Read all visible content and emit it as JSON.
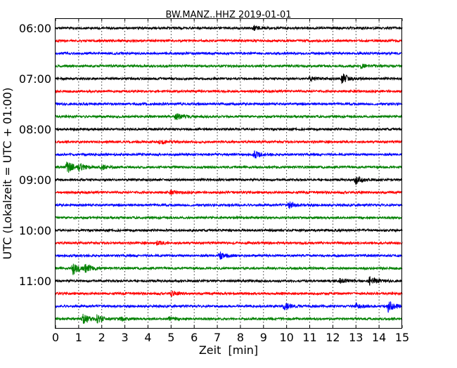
{
  "chart_data": {
    "type": "line",
    "title": "BW.MANZ..HHZ 2019-01-01",
    "xlabel": "Zeit  [min]",
    "ylabel": "UTC (Lokalzeit = UTC + 01:00)",
    "xlim": [
      0,
      15
    ],
    "x_ticks": [
      "0",
      "1",
      "2",
      "3",
      "4",
      "5",
      "6",
      "7",
      "8",
      "9",
      "10",
      "11",
      "12",
      "13",
      "14",
      "15"
    ],
    "y_ticks": [
      {
        "trace": 0,
        "label": "06:00"
      },
      {
        "trace": 4,
        "label": "07:00"
      },
      {
        "trace": 8,
        "label": "08:00"
      },
      {
        "trace": 12,
        "label": "09:00"
      },
      {
        "trace": 16,
        "label": "10:00"
      },
      {
        "trace": 20,
        "label": "11:00"
      }
    ],
    "grid": "vertical dotted",
    "colors": [
      "#000000",
      "#ff0000",
      "#0000ff",
      "#008000"
    ],
    "trace_minutes": 15,
    "traces": [
      {
        "start": "06:00",
        "events": [
          [
            8.6,
            0.4
          ]
        ]
      },
      {
        "start": "06:15",
        "events": []
      },
      {
        "start": "06:30",
        "events": []
      },
      {
        "start": "06:45",
        "events": [
          [
            13.2,
            0.3
          ]
        ]
      },
      {
        "start": "07:00",
        "events": [
          [
            11.0,
            0.35
          ],
          [
            12.4,
            1.0
          ]
        ]
      },
      {
        "start": "07:15",
        "events": []
      },
      {
        "start": "07:30",
        "events": []
      },
      {
        "start": "07:45",
        "events": [
          [
            5.2,
            0.6
          ]
        ]
      },
      {
        "start": "08:00",
        "events": []
      },
      {
        "start": "08:15",
        "events": [
          [
            4.5,
            0.3
          ]
        ]
      },
      {
        "start": "08:30",
        "events": [
          [
            8.6,
            0.6
          ]
        ]
      },
      {
        "start": "08:45",
        "events": [
          [
            0.5,
            1.1
          ],
          [
            1.0,
            0.6
          ],
          [
            2.0,
            0.4
          ]
        ]
      },
      {
        "start": "09:00",
        "events": [
          [
            13.0,
            0.8
          ]
        ]
      },
      {
        "start": "09:15",
        "events": [
          [
            5.0,
            0.3
          ]
        ]
      },
      {
        "start": "09:30",
        "events": [
          [
            10.1,
            0.6
          ]
        ]
      },
      {
        "start": "09:45",
        "events": []
      },
      {
        "start": "10:00",
        "events": []
      },
      {
        "start": "10:15",
        "events": [
          [
            4.4,
            0.3
          ]
        ]
      },
      {
        "start": "10:30",
        "events": [
          [
            7.1,
            0.6
          ]
        ]
      },
      {
        "start": "10:45",
        "events": [
          [
            0.75,
            1.2
          ],
          [
            1.3,
            0.6
          ]
        ]
      },
      {
        "start": "11:00",
        "events": [
          [
            12.3,
            0.35
          ],
          [
            13.6,
            0.8
          ]
        ]
      },
      {
        "start": "11:15",
        "events": [
          [
            5.0,
            0.4
          ]
        ]
      },
      {
        "start": "11:30",
        "events": [
          [
            9.9,
            0.6
          ],
          [
            13.0,
            0.5
          ],
          [
            14.4,
            1.0
          ]
        ]
      },
      {
        "start": "11:45",
        "events": [
          [
            1.2,
            1.0
          ],
          [
            1.8,
            0.6
          ],
          [
            2.8,
            0.3
          ],
          [
            4.9,
            0.3
          ]
        ]
      }
    ]
  }
}
